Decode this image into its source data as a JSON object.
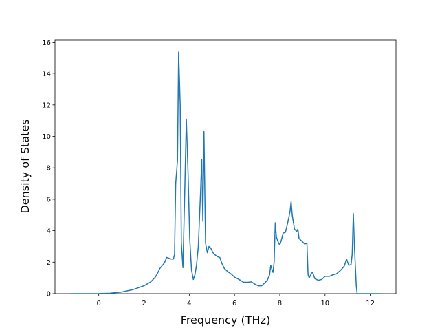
{
  "chart_data": {
    "type": "line",
    "x_label": "Frequency (THz)",
    "y_label": "Density of States",
    "xlim": [
      -1.935,
      13.135
    ],
    "ylim": [
      0,
      16.15
    ],
    "xticks": [
      0,
      2,
      4,
      6,
      8,
      10,
      12
    ],
    "yticks": [
      0,
      2,
      4,
      6,
      8,
      10,
      12,
      14,
      16
    ],
    "x": [
      -1.25,
      -0.5,
      0,
      0.5,
      1,
      1.5,
      2,
      2.3,
      2.5,
      2.6,
      2.7,
      2.9,
      3.0,
      3.1,
      3.2,
      3.3,
      3.35,
      3.4,
      3.48,
      3.53,
      3.6,
      3.65,
      3.72,
      3.8,
      3.87,
      3.95,
      4.02,
      4.1,
      4.18,
      4.25,
      4.32,
      4.4,
      4.5,
      4.55,
      4.6,
      4.65,
      4.72,
      4.8,
      4.87,
      4.95,
      5.05,
      5.15,
      5.25,
      5.35,
      5.45,
      5.55,
      5.7,
      5.85,
      6.0,
      6.2,
      6.4,
      6.6,
      6.75,
      6.9,
      7.05,
      7.2,
      7.35,
      7.45,
      7.55,
      7.6,
      7.65,
      7.7,
      7.75,
      7.8,
      7.85,
      7.95,
      8.0,
      8.05,
      8.15,
      8.25,
      8.35,
      8.45,
      8.5,
      8.55,
      8.65,
      8.75,
      8.8,
      8.85,
      9.0,
      9.1,
      9.2,
      9.25,
      9.3,
      9.4,
      9.45,
      9.55,
      9.7,
      9.85,
      10.0,
      10.2,
      10.35,
      10.5,
      10.7,
      10.85,
      10.95,
      11.05,
      11.15,
      11.2,
      11.25,
      11.3,
      11.38,
      11.42,
      12.45
    ],
    "series": [
      {
        "color": "#1f77b4",
        "values": [
          0,
          0,
          0.005,
          0.03,
          0.1,
          0.25,
          0.5,
          0.75,
          1.05,
          1.3,
          1.6,
          1.95,
          2.3,
          2.25,
          2.2,
          2.2,
          2.5,
          7.0,
          8.5,
          15.4,
          12,
          3.2,
          1.65,
          6.5,
          11.1,
          7.5,
          3.5,
          1.5,
          0.9,
          1.2,
          1.8,
          3.0,
          6.5,
          8.55,
          4.6,
          10.3,
          3.2,
          2.6,
          3.0,
          2.9,
          2.6,
          2.45,
          2.35,
          2.3,
          1.9,
          1.6,
          1.4,
          1.25,
          1.05,
          0.9,
          0.72,
          0.72,
          0.75,
          0.6,
          0.5,
          0.5,
          0.7,
          0.85,
          1.2,
          1.8,
          1.55,
          1.35,
          2.0,
          4.5,
          3.6,
          3.2,
          3.1,
          3.3,
          3.85,
          3.9,
          4.5,
          5.2,
          5.85,
          5.0,
          4.1,
          3.95,
          4.1,
          3.5,
          3.3,
          3.15,
          3.2,
          1.2,
          1.0,
          1.3,
          1.35,
          0.95,
          0.85,
          0.9,
          1.1,
          1.1,
          1.2,
          1.25,
          1.5,
          1.75,
          2.2,
          1.8,
          1.85,
          2.5,
          5.1,
          3.0,
          0.5,
          0,
          0
        ]
      }
    ]
  }
}
